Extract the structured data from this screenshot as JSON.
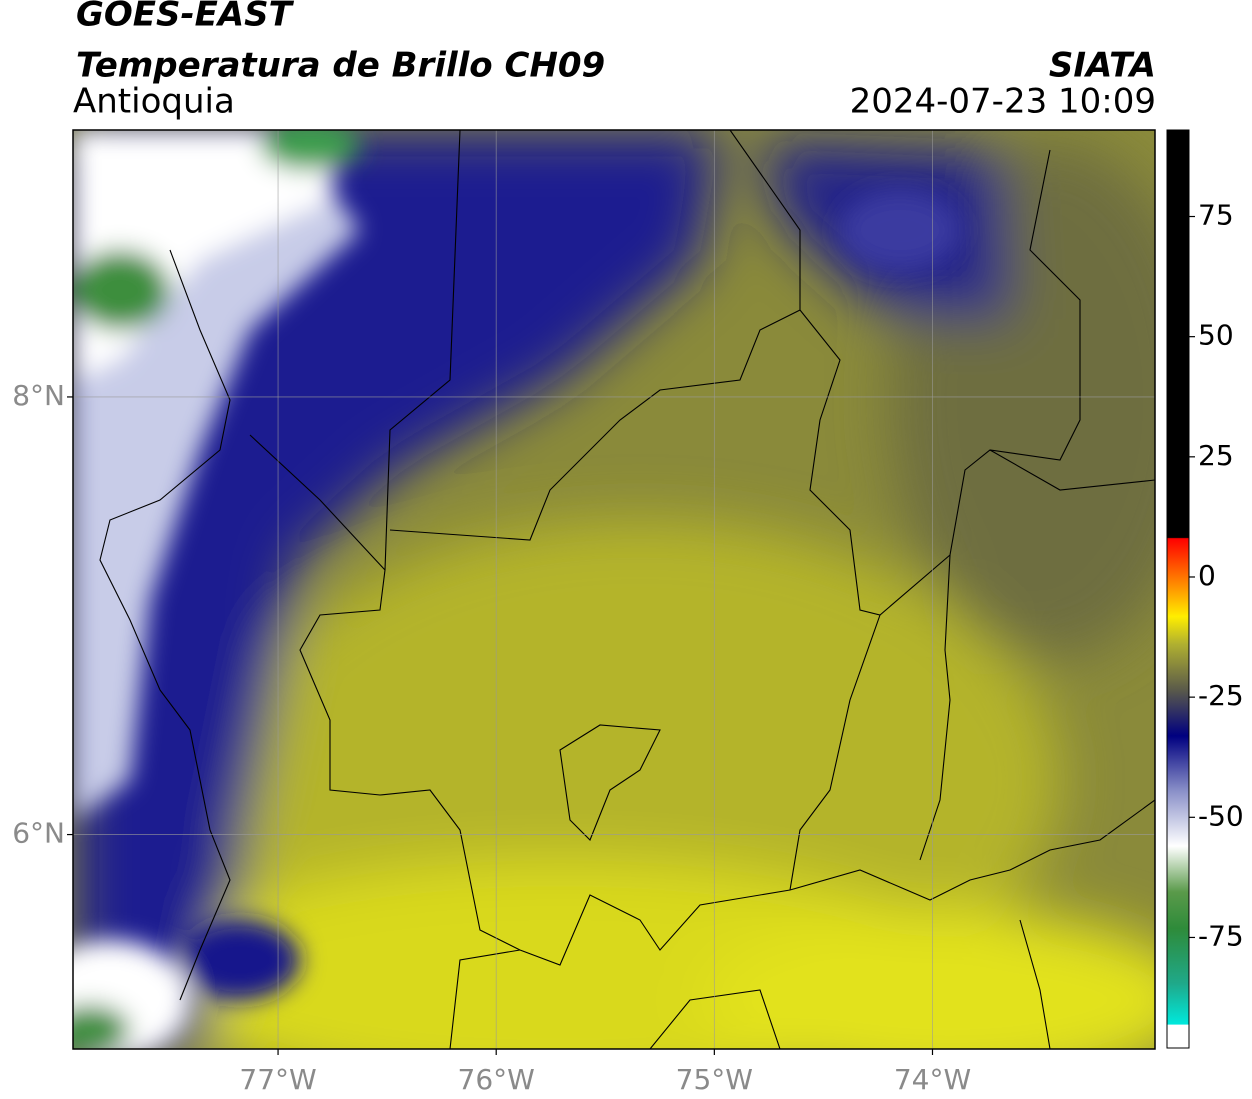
{
  "header": {
    "title": "GOES-EAST",
    "subtitle": "Temperatura de Brillo CH09",
    "region": "Antioquia",
    "source": "SIATA",
    "timestamp": "2024-07-23 10:09"
  },
  "map": {
    "lon_range": [
      -77.94,
      -72.98
    ],
    "lat_range": [
      5.02,
      9.22
    ],
    "lon_ticks": [
      {
        "value": -77,
        "label": "77°W"
      },
      {
        "value": -76,
        "label": "76°W"
      },
      {
        "value": -75,
        "label": "75°W"
      },
      {
        "value": -74,
        "label": "74°W"
      }
    ],
    "lat_ticks": [
      {
        "value": 8,
        "label": "8°N"
      },
      {
        "value": 6,
        "label": "6°N"
      }
    ]
  },
  "colorbar": {
    "range": [
      -98,
      93
    ],
    "ticks": [
      75,
      50,
      25,
      0,
      -25,
      -50,
      -75
    ]
  }
}
